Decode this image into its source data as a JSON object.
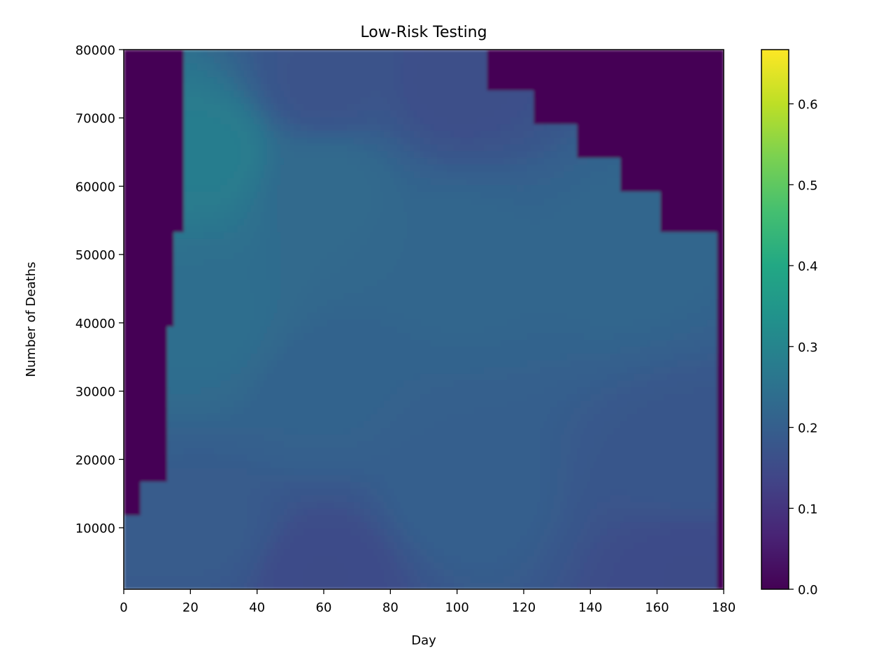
{
  "chart_data": {
    "type": "heatmap",
    "title": "Low-Risk Testing",
    "xlabel": "Day",
    "ylabel": "Number of Deaths",
    "xlim": [
      0,
      180
    ],
    "ylim": [
      1000,
      80000
    ],
    "xticks": [
      0,
      20,
      40,
      60,
      80,
      100,
      120,
      140,
      160,
      180
    ],
    "yticks": [
      10000,
      20000,
      30000,
      40000,
      50000,
      60000,
      70000,
      80000
    ],
    "colormap": "viridis",
    "colorbar": {
      "range": [
        0.0,
        0.667
      ],
      "ticks": [
        0.0,
        0.1,
        0.2,
        0.3,
        0.4,
        0.5,
        0.6
      ],
      "tick_labels": [
        "0.0",
        "0.1",
        "0.2",
        "0.3",
        "0.4",
        "0.5",
        "0.6"
      ]
    },
    "grid": false,
    "zero_region_boundary": {
      "description": "Cells below lower boundary or above upper boundary have value 0",
      "lower": [
        {
          "x_from": 0,
          "x_to": 5,
          "y": 12000
        },
        {
          "x_from": 5,
          "x_to": 13.5,
          "y": 17000
        },
        {
          "x_from": 13.5,
          "x_to": 15.5,
          "y": 40000
        },
        {
          "x_from": 15.5,
          "x_to": 18,
          "y": 53000
        },
        {
          "x_from": 18,
          "x_to": 180,
          "y": 80000
        }
      ],
      "upper": [
        {
          "x_from": 0,
          "x_to": 109,
          "y": 80000
        },
        {
          "x_from": 109,
          "x_to": 123,
          "y": 74000
        },
        {
          "x_from": 123,
          "x_to": 136,
          "y": 69000
        },
        {
          "x_from": 136,
          "x_to": 149,
          "y": 64000
        },
        {
          "x_from": 149,
          "x_to": 161,
          "y": 59000
        },
        {
          "x_from": 161,
          "x_to": 178,
          "y": 53000
        },
        {
          "x_from": 178,
          "x_to": 180,
          "y": 0
        }
      ]
    },
    "value_samples": [
      {
        "x": 25,
        "y": 65000,
        "v": 0.28
      },
      {
        "x": 25,
        "y": 40000,
        "v": 0.24
      },
      {
        "x": 25,
        "y": 10000,
        "v": 0.19
      },
      {
        "x": 60,
        "y": 75000,
        "v": 0.17
      },
      {
        "x": 60,
        "y": 60000,
        "v": 0.23
      },
      {
        "x": 60,
        "y": 30000,
        "v": 0.21
      },
      {
        "x": 60,
        "y": 3000,
        "v": 0.15
      },
      {
        "x": 100,
        "y": 75000,
        "v": 0.16
      },
      {
        "x": 100,
        "y": 50000,
        "v": 0.22
      },
      {
        "x": 100,
        "y": 15000,
        "v": 0.2
      },
      {
        "x": 150,
        "y": 50000,
        "v": 0.22
      },
      {
        "x": 170,
        "y": 20000,
        "v": 0.18
      },
      {
        "x": 170,
        "y": 3000,
        "v": 0.15
      }
    ]
  }
}
